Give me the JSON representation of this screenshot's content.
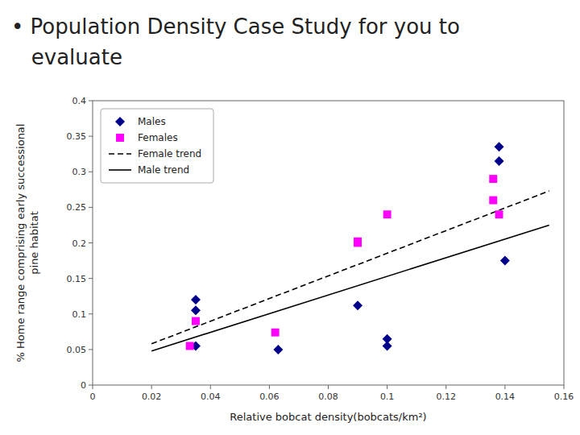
{
  "chart_data": {
    "type": "scatter",
    "title": "• Population Density Case Study for you to\n   evaluate",
    "x_label": "Relative bobcat density(bobcats/km²)",
    "y_label": "% Home range comprising early successional\npine habitat",
    "xlim": [
      0,
      0.16
    ],
    "ylim": [
      0,
      0.4
    ],
    "xticks": [
      0,
      0.02,
      0.04,
      0.06,
      0.08,
      0.1,
      0.12,
      0.14,
      0.16
    ],
    "yticks": [
      0,
      0.05,
      0.1,
      0.15,
      0.2,
      0.25,
      0.3,
      0.35,
      0.4
    ],
    "grid": false,
    "legend": "upper left",
    "series": [
      {
        "name": "Males",
        "type": "scatter",
        "marker": "diamond",
        "color": "#00008B",
        "x": [
          0.035,
          0.035,
          0.035,
          0.063,
          0.09,
          0.1,
          0.1,
          0.138,
          0.138,
          0.14
        ],
        "values": [
          0.12,
          0.105,
          0.055,
          0.05,
          0.112,
          0.065,
          0.055,
          0.335,
          0.315,
          0.175
        ]
      },
      {
        "name": "Females",
        "type": "scatter",
        "marker": "square",
        "color": "#FF00FF",
        "x": [
          0.033,
          0.035,
          0.062,
          0.09,
          0.09,
          0.1,
          0.136,
          0.136,
          0.138
        ],
        "values": [
          0.055,
          0.09,
          0.074,
          0.202,
          0.2,
          0.24,
          0.26,
          0.29,
          0.24
        ]
      },
      {
        "name": "Female trend",
        "type": "line",
        "line_style": "dashed",
        "color": "#000000",
        "x": [
          0.02,
          0.155
        ],
        "values": [
          0.058,
          0.273
        ]
      },
      {
        "name": "Male trend",
        "type": "line",
        "line_style": "solid",
        "color": "#000000",
        "x": [
          0.02,
          0.155
        ],
        "values": [
          0.048,
          0.225
        ]
      }
    ]
  }
}
